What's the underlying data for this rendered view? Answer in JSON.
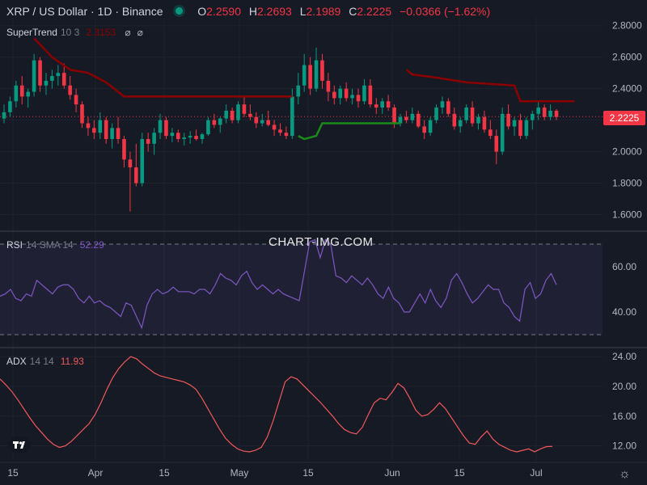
{
  "header": {
    "symbol": "XRP / US Dollar · 1D · Binance",
    "o_label": "O",
    "o_value": "2.2590",
    "h_label": "H",
    "h_value": "2.2693",
    "l_label": "L",
    "l_value": "2.1989",
    "c_label": "C",
    "c_value": "2.2225",
    "change": "−0.0366 (−1.62%)"
  },
  "supertrend": {
    "name": "SuperTrend",
    "params": "10 3",
    "value": "2.3153",
    "icons": [
      "eye-off-icon",
      "eye-off-icon"
    ]
  },
  "rsi": {
    "name": "RSI",
    "params": "14 SMA 14",
    "value": "52.29"
  },
  "adx": {
    "name": "ADX",
    "params": "14 14",
    "value": "11.93"
  },
  "watermark": "CHART-IMG.COM",
  "last_price": "2.2225",
  "colors": {
    "up": "#089981",
    "down": "#f23645",
    "st_up": "#1b8a1b",
    "st_down": "#8b0000",
    "rsi": "#7e57c2",
    "adx": "#f0595a",
    "bg": "#161a25"
  },
  "chart_data": [
    {
      "type": "candlestick",
      "title": "XRP / US Dollar · 1D · Binance",
      "x_ticks": [
        "15",
        "Apr",
        "15",
        "May",
        "15",
        "Jun",
        "15",
        "Jul"
      ],
      "ylim": [
        1.5,
        2.85
      ],
      "y_ticks": [
        1.6,
        1.8,
        2.0,
        2.2,
        2.4,
        2.6,
        2.8
      ],
      "candles": [
        [
          2.21,
          2.3,
          2.18,
          2.25
        ],
        [
          2.25,
          2.35,
          2.22,
          2.32
        ],
        [
          2.32,
          2.45,
          2.28,
          2.42
        ],
        [
          2.42,
          2.48,
          2.3,
          2.35
        ],
        [
          2.35,
          2.4,
          2.28,
          2.38
        ],
        [
          2.38,
          2.62,
          2.35,
          2.58
        ],
        [
          2.58,
          2.6,
          2.38,
          2.42
        ],
        [
          2.42,
          2.5,
          2.36,
          2.45
        ],
        [
          2.45,
          2.52,
          2.4,
          2.48
        ],
        [
          2.48,
          2.55,
          2.42,
          2.5
        ],
        [
          2.5,
          2.56,
          2.4,
          2.42
        ],
        [
          2.42,
          2.48,
          2.33,
          2.36
        ],
        [
          2.36,
          2.4,
          2.25,
          2.3
        ],
        [
          2.3,
          2.32,
          2.15,
          2.18
        ],
        [
          2.18,
          2.22,
          2.1,
          2.15
        ],
        [
          2.15,
          2.2,
          2.08,
          2.12
        ],
        [
          2.12,
          2.25,
          2.08,
          2.2
        ],
        [
          2.2,
          2.22,
          2.05,
          2.08
        ],
        [
          2.08,
          2.18,
          2.02,
          2.15
        ],
        [
          2.15,
          2.22,
          2.05,
          2.08
        ],
        [
          2.08,
          2.1,
          1.9,
          1.95
        ],
        [
          1.95,
          2.0,
          1.62,
          1.9
        ],
        [
          1.9,
          2.05,
          1.78,
          1.8
        ],
        [
          1.8,
          2.12,
          1.78,
          2.08
        ],
        [
          2.08,
          2.12,
          2.0,
          2.05
        ],
        [
          2.05,
          2.15,
          1.98,
          2.12
        ],
        [
          2.12,
          2.24,
          2.08,
          2.2
        ],
        [
          2.2,
          2.22,
          2.08,
          2.1
        ],
        [
          2.1,
          2.15,
          2.06,
          2.12
        ],
        [
          2.12,
          2.14,
          2.06,
          2.08
        ],
        [
          2.08,
          2.12,
          2.04,
          2.09
        ],
        [
          2.09,
          2.13,
          2.05,
          2.1
        ],
        [
          2.1,
          2.14,
          2.07,
          2.08
        ],
        [
          2.08,
          2.12,
          2.05,
          2.11
        ],
        [
          2.11,
          2.22,
          2.1,
          2.2
        ],
        [
          2.2,
          2.24,
          2.15,
          2.17
        ],
        [
          2.17,
          2.22,
          2.12,
          2.21
        ],
        [
          2.21,
          2.3,
          2.18,
          2.26
        ],
        [
          2.26,
          2.28,
          2.18,
          2.2
        ],
        [
          2.2,
          2.32,
          2.18,
          2.3
        ],
        [
          2.3,
          2.35,
          2.22,
          2.24
        ],
        [
          2.24,
          2.3,
          2.2,
          2.22
        ],
        [
          2.22,
          2.25,
          2.15,
          2.18
        ],
        [
          2.18,
          2.24,
          2.16,
          2.2
        ],
        [
          2.2,
          2.26,
          2.16,
          2.17
        ],
        [
          2.17,
          2.2,
          2.1,
          2.14
        ],
        [
          2.14,
          2.18,
          2.1,
          2.12
        ],
        [
          2.12,
          2.16,
          2.08,
          2.1
        ],
        [
          2.1,
          2.4,
          2.08,
          2.35
        ],
        [
          2.35,
          2.5,
          2.3,
          2.42
        ],
        [
          2.42,
          2.62,
          2.38,
          2.55
        ],
        [
          2.55,
          2.6,
          2.36,
          2.4
        ],
        [
          2.4,
          2.66,
          2.38,
          2.58
        ],
        [
          2.58,
          2.62,
          2.4,
          2.45
        ],
        [
          2.45,
          2.5,
          2.32,
          2.38
        ],
        [
          2.38,
          2.42,
          2.3,
          2.34
        ],
        [
          2.34,
          2.42,
          2.3,
          2.4
        ],
        [
          2.4,
          2.44,
          2.32,
          2.34
        ],
        [
          2.34,
          2.4,
          2.3,
          2.36
        ],
        [
          2.36,
          2.4,
          2.28,
          2.32
        ],
        [
          2.32,
          2.46,
          2.3,
          2.42
        ],
        [
          2.42,
          2.46,
          2.28,
          2.3
        ],
        [
          2.3,
          2.34,
          2.24,
          2.28
        ],
        [
          2.28,
          2.34,
          2.24,
          2.32
        ],
        [
          2.32,
          2.36,
          2.26,
          2.28
        ],
        [
          2.28,
          2.3,
          2.15,
          2.18
        ],
        [
          2.18,
          2.24,
          2.16,
          2.22
        ],
        [
          2.22,
          2.26,
          2.18,
          2.2
        ],
        [
          2.2,
          2.28,
          2.18,
          2.24
        ],
        [
          2.24,
          2.26,
          2.15,
          2.16
        ],
        [
          2.16,
          2.2,
          2.08,
          2.12
        ],
        [
          2.12,
          2.22,
          2.1,
          2.2
        ],
        [
          2.2,
          2.3,
          2.18,
          2.28
        ],
        [
          2.28,
          2.35,
          2.24,
          2.32
        ],
        [
          2.32,
          2.34,
          2.22,
          2.24
        ],
        [
          2.24,
          2.28,
          2.14,
          2.16
        ],
        [
          2.16,
          2.22,
          2.12,
          2.2
        ],
        [
          2.2,
          2.3,
          2.18,
          2.28
        ],
        [
          2.28,
          2.32,
          2.16,
          2.18
        ],
        [
          2.18,
          2.24,
          2.14,
          2.22
        ],
        [
          2.22,
          2.26,
          2.12,
          2.14
        ],
        [
          2.14,
          2.2,
          2.08,
          2.1
        ],
        [
          2.1,
          2.14,
          1.92,
          2.0
        ],
        [
          2.0,
          2.28,
          1.98,
          2.24
        ],
        [
          2.24,
          2.3,
          2.14,
          2.16
        ],
        [
          2.16,
          2.22,
          2.1,
          2.2
        ],
        [
          2.2,
          2.24,
          2.08,
          2.1
        ],
        [
          2.1,
          2.22,
          2.08,
          2.2
        ],
        [
          2.2,
          2.26,
          2.14,
          2.24
        ],
        [
          2.24,
          2.32,
          2.2,
          2.28
        ],
        [
          2.28,
          2.3,
          2.2,
          2.22
        ],
        [
          2.22,
          2.3,
          2.2,
          2.26
        ],
        [
          2.26,
          2.27,
          2.2,
          2.22
        ]
      ],
      "supertrend_line": [
        {
          "trend": "down",
          "points": [
            [
              5,
              2.72
            ],
            [
              8,
              2.6
            ],
            [
              11,
              2.52
            ],
            [
              14,
              2.5
            ],
            [
              17,
              2.44
            ],
            [
              20,
              2.35
            ],
            [
              25,
              2.35
            ],
            [
              30,
              2.35
            ],
            [
              40,
              2.35
            ],
            [
              47,
              2.35
            ],
            [
              48,
              2.35
            ]
          ]
        },
        {
          "trend": "up",
          "points": [
            [
              49,
              2.1
            ],
            [
              50,
              2.08
            ],
            [
              52,
              2.1
            ],
            [
              53,
              2.18
            ],
            [
              60,
              2.18
            ],
            [
              66,
              2.18
            ]
          ]
        },
        {
          "trend": "down",
          "points": [
            [
              67,
              2.52
            ],
            [
              68,
              2.49
            ],
            [
              72,
              2.47
            ],
            [
              77,
              2.44
            ],
            [
              85,
              2.42
            ],
            [
              86,
              2.32
            ],
            [
              95,
              2.32
            ]
          ]
        }
      ]
    },
    {
      "type": "line",
      "series_label": "RSI 14 SMA 14",
      "ylim": [
        25,
        75
      ],
      "y_ticks": [
        40,
        60
      ],
      "bands": [
        70,
        30
      ],
      "values": [
        47,
        48,
        50,
        46,
        45,
        48,
        47,
        54,
        52,
        50,
        48,
        51,
        52,
        52,
        50,
        46,
        44,
        47,
        44,
        45,
        43,
        42,
        40,
        38,
        44,
        43,
        38,
        33,
        43,
        48,
        50,
        48,
        49,
        51,
        49,
        49,
        49,
        48,
        50,
        50,
        48,
        52,
        57,
        55,
        54,
        52,
        56,
        58,
        53,
        50,
        52,
        50,
        48,
        50,
        48,
        47,
        46,
        45,
        58,
        71,
        72,
        64,
        72,
        70,
        56,
        55,
        53,
        56,
        54,
        52,
        55,
        52,
        48,
        46,
        51,
        46,
        44,
        40,
        40,
        44,
        48,
        44,
        50,
        45,
        42,
        46,
        54,
        57,
        53,
        48,
        44,
        46,
        49,
        52,
        50,
        50,
        44,
        42,
        38,
        36,
        50,
        53,
        46,
        48,
        54,
        57,
        52
      ],
      "last_value": 52.29
    },
    {
      "type": "line",
      "series_label": "ADX 14 14",
      "ylim": [
        10,
        25
      ],
      "y_ticks": [
        12,
        16,
        20,
        24
      ],
      "values": [
        21.0,
        20.2,
        19.3,
        18.2,
        17.0,
        15.8,
        14.7,
        13.8,
        12.9,
        12.2,
        11.8,
        12.0,
        12.6,
        13.4,
        14.2,
        15.0,
        16.2,
        17.8,
        19.6,
        21.2,
        22.4,
        23.3,
        24.0,
        23.7,
        23.0,
        22.4,
        21.8,
        21.4,
        21.2,
        21.0,
        20.8,
        20.6,
        20.2,
        19.6,
        18.4,
        17.0,
        15.6,
        14.2,
        13.0,
        12.2,
        11.6,
        11.3,
        11.2,
        11.4,
        11.8,
        13.2,
        15.4,
        18.0,
        20.6,
        21.3,
        21.0,
        20.2,
        19.4,
        18.6,
        17.8,
        16.9,
        16.0,
        15.0,
        14.2,
        13.8,
        13.6,
        14.5,
        16.2,
        17.8,
        18.4,
        18.2,
        19.2,
        20.4,
        19.8,
        18.4,
        16.8,
        16.0,
        16.2,
        16.9,
        17.8,
        17.0,
        15.8,
        14.6,
        13.4,
        12.4,
        12.2,
        13.2,
        14.0,
        12.9,
        12.2,
        11.8,
        11.4,
        11.2,
        11.4,
        11.6,
        11.2,
        11.6,
        11.9,
        11.93
      ],
      "last_value": 11.93
    }
  ]
}
